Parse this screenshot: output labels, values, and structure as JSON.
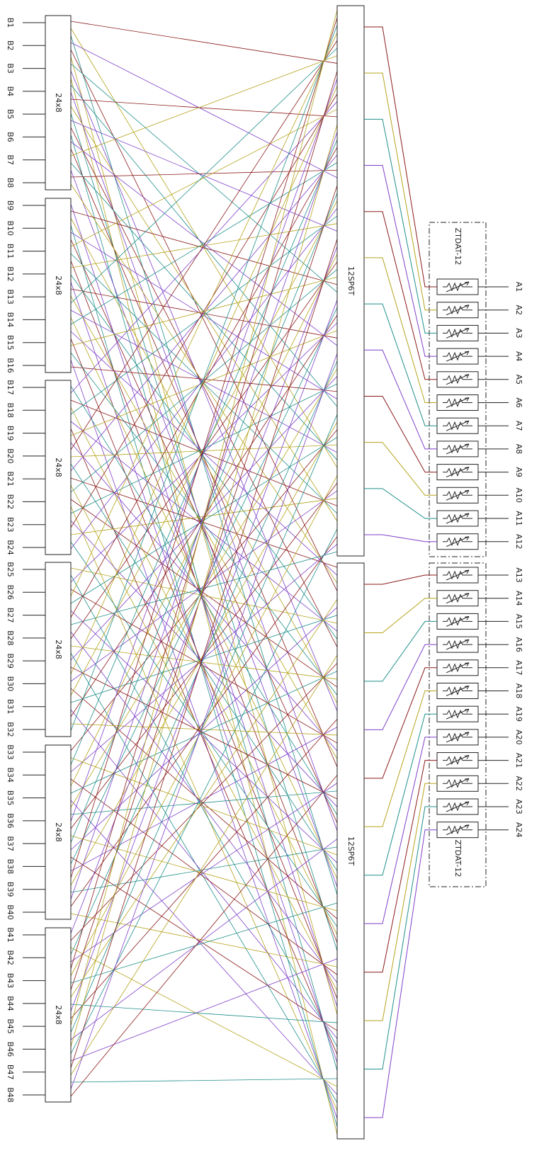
{
  "diagram": {
    "b_ports": [
      "B1",
      "B2",
      "B3",
      "B4",
      "B5",
      "B6",
      "B7",
      "B8",
      "B9",
      "B10",
      "B11",
      "B12",
      "B13",
      "B14",
      "B15",
      "B16",
      "B17",
      "B18",
      "B19",
      "B20",
      "B21",
      "B22",
      "B23",
      "B24",
      "B25",
      "B26",
      "B27",
      "B28",
      "B29",
      "B30",
      "B31",
      "B32",
      "B33",
      "B34",
      "B35",
      "B36",
      "B37",
      "B38",
      "B39",
      "B40",
      "B41",
      "B42",
      "B43",
      "B44",
      "B45",
      "B46",
      "B47",
      "B48"
    ],
    "a_ports": [
      "A1",
      "A2",
      "A3",
      "A4",
      "A5",
      "A6",
      "A7",
      "A8",
      "A9",
      "A10",
      "A11",
      "A12",
      "A13",
      "A14",
      "A15",
      "A16",
      "A17",
      "A18",
      "A19",
      "A20",
      "A21",
      "A22",
      "A23",
      "A24"
    ],
    "matrix_blocks": [
      "24x8",
      "24x8",
      "24x8",
      "24x8",
      "24x8",
      "24x8"
    ],
    "switch_blocks": [
      "12SP6T",
      "12SP6T"
    ],
    "attenuator_groups": [
      "ZTDAT-12",
      "ZTDAT-12"
    ],
    "wire_colors": [
      "#8b1a1a",
      "#b5a31c",
      "#1f8f8a",
      "#7e3fc9"
    ]
  }
}
